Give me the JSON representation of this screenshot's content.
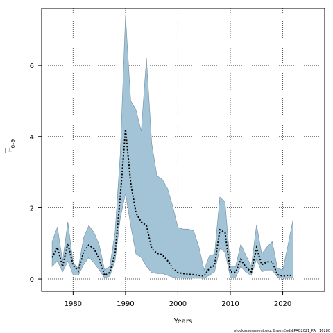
{
  "chart_data": {
    "type": "area",
    "title": "",
    "xlabel": "Years",
    "ylabel_main": "F",
    "ylabel_sub": "6–9",
    "ylabel_overline": true,
    "xlim": [
      1974,
      2028
    ],
    "ylim": [
      -0.35,
      7.6
    ],
    "x_ticks": [
      1980,
      1990,
      2000,
      2010,
      2020
    ],
    "y_ticks": [
      0,
      2,
      4,
      6
    ],
    "grid": true,
    "band_color": "#a3c4d6",
    "band_edge_color": "#6f8ea3",
    "line_color": "#000000",
    "x": [
      1976,
      1977,
      1978,
      1979,
      1980,
      1981,
      1982,
      1983,
      1984,
      1985,
      1986,
      1987,
      1988,
      1989,
      1990,
      1991,
      1992,
      1993,
      1994,
      1995,
      1996,
      1997,
      1998,
      1999,
      2000,
      2001,
      2002,
      2003,
      2004,
      2005,
      2006,
      2007,
      2008,
      2009,
      2010,
      2011,
      2012,
      2013,
      2014,
      2015,
      2016,
      2017,
      2018,
      2019,
      2020,
      2021,
      2022
    ],
    "series": [
      {
        "role": "upper",
        "values": [
          1.05,
          1.45,
          0.5,
          1.6,
          0.45,
          0.3,
          1.15,
          1.5,
          1.3,
          0.95,
          0.25,
          0.35,
          1.3,
          3.5,
          7.4,
          5.0,
          4.75,
          4.15,
          6.2,
          3.8,
          2.9,
          2.8,
          2.55,
          2.05,
          1.45,
          1.4,
          1.4,
          1.35,
          0.9,
          0.25,
          0.65,
          0.7,
          2.3,
          2.15,
          0.35,
          0.35,
          0.98,
          0.65,
          0.35,
          1.52,
          0.7,
          0.9,
          1.05,
          0.3,
          0.25,
          0.95,
          1.7
        ]
      },
      {
        "role": "lower",
        "values": [
          0.35,
          0.5,
          0.2,
          0.5,
          0.12,
          0.1,
          0.4,
          0.6,
          0.45,
          0.25,
          0.03,
          0.08,
          0.5,
          1.7,
          2.4,
          1.5,
          0.7,
          0.6,
          0.35,
          0.18,
          0.15,
          0.15,
          0.1,
          0.05,
          0.03,
          0.02,
          0.02,
          0.02,
          0.02,
          0.02,
          0.1,
          0.2,
          0.85,
          0.75,
          0.05,
          0.05,
          0.35,
          0.18,
          0.1,
          0.55,
          0.2,
          0.25,
          0.25,
          0.05,
          0.02,
          0.02,
          0.05
        ]
      },
      {
        "role": "estimate",
        "values": [
          0.6,
          0.88,
          0.35,
          1.0,
          0.38,
          0.22,
          0.75,
          0.95,
          0.85,
          0.55,
          0.1,
          0.18,
          0.7,
          2.3,
          4.2,
          2.7,
          1.85,
          1.6,
          1.5,
          0.85,
          0.72,
          0.68,
          0.52,
          0.3,
          0.18,
          0.15,
          0.13,
          0.12,
          0.1,
          0.08,
          0.3,
          0.38,
          1.38,
          1.3,
          0.2,
          0.18,
          0.55,
          0.32,
          0.2,
          0.88,
          0.4,
          0.48,
          0.48,
          0.12,
          0.08,
          0.1,
          0.1
        ]
      }
    ],
    "footnote": "stockassessment.org, GreenCodNIPAG2021_PA, r16280"
  }
}
